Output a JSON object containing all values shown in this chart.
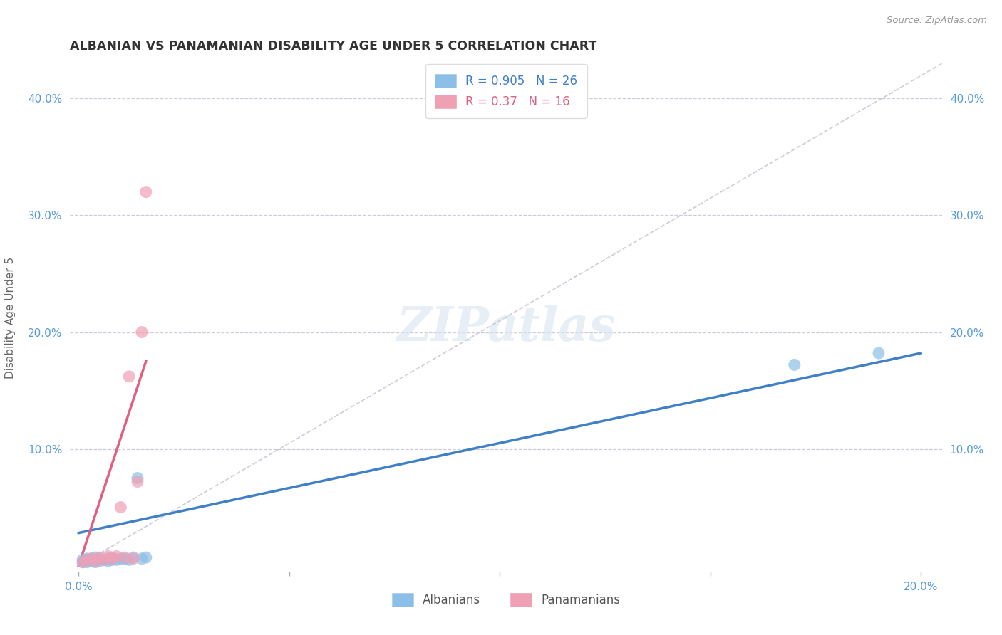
{
  "title": "ALBANIAN VS PANAMANIAN DISABILITY AGE UNDER 5 CORRELATION CHART",
  "source": "Source: ZipAtlas.com",
  "xlabel_ticks": [
    0.0,
    0.05,
    0.1,
    0.15,
    0.2
  ],
  "xlabel_labels": [
    "0.0%",
    "",
    "",
    "",
    "20.0%"
  ],
  "ylabel_ticks": [
    0.0,
    0.1,
    0.2,
    0.3,
    0.4
  ],
  "ylabel_labels": [
    "",
    "10.0%",
    "20.0%",
    "30.0%",
    "40.0%"
  ],
  "right_ylabel_labels": [
    "",
    "10.0%",
    "20.0%",
    "30.0%",
    "40.0%"
  ],
  "xlim": [
    -0.002,
    0.205
  ],
  "ylim": [
    -0.005,
    0.43
  ],
  "ylabel": "Disability Age Under 5",
  "albanian_r": 0.905,
  "albanian_n": 26,
  "panamanian_r": 0.37,
  "panamanian_n": 16,
  "albanian_color": "#8BBFE8",
  "panamanian_color": "#F0A0B5",
  "albanian_line_color": "#4080C8",
  "panamanian_line_color": "#E06080",
  "ref_line_color": "#CCCCDD",
  "background_color": "#FFFFFF",
  "grid_color": "#CCCCDD",
  "albanian_x": [
    0.001,
    0.001,
    0.002,
    0.002,
    0.003,
    0.003,
    0.004,
    0.004,
    0.004,
    0.005,
    0.005,
    0.006,
    0.007,
    0.007,
    0.008,
    0.008,
    0.009,
    0.01,
    0.011,
    0.012,
    0.013,
    0.014,
    0.015,
    0.016,
    0.17,
    0.19
  ],
  "albanian_y": [
    0.003,
    0.005,
    0.003,
    0.006,
    0.004,
    0.006,
    0.003,
    0.005,
    0.007,
    0.004,
    0.006,
    0.005,
    0.004,
    0.006,
    0.005,
    0.007,
    0.005,
    0.006,
    0.006,
    0.005,
    0.007,
    0.075,
    0.006,
    0.007,
    0.172,
    0.182
  ],
  "panamanian_x": [
    0.001,
    0.002,
    0.003,
    0.004,
    0.005,
    0.006,
    0.007,
    0.008,
    0.009,
    0.01,
    0.011,
    0.012,
    0.013,
    0.014,
    0.015,
    0.016
  ],
  "panamanian_y": [
    0.003,
    0.005,
    0.006,
    0.004,
    0.007,
    0.005,
    0.008,
    0.006,
    0.008,
    0.05,
    0.007,
    0.162,
    0.006,
    0.072,
    0.2,
    0.32
  ],
  "albanian_line_x": [
    0.0,
    0.2
  ],
  "albanian_line_y": [
    0.028,
    0.182
  ],
  "panamanian_line_x": [
    0.0,
    0.016
  ],
  "panamanian_line_y": [
    0.0,
    0.175
  ],
  "ref_line_x": [
    0.0,
    0.205
  ],
  "ref_line_y": [
    0.0,
    0.43
  ]
}
